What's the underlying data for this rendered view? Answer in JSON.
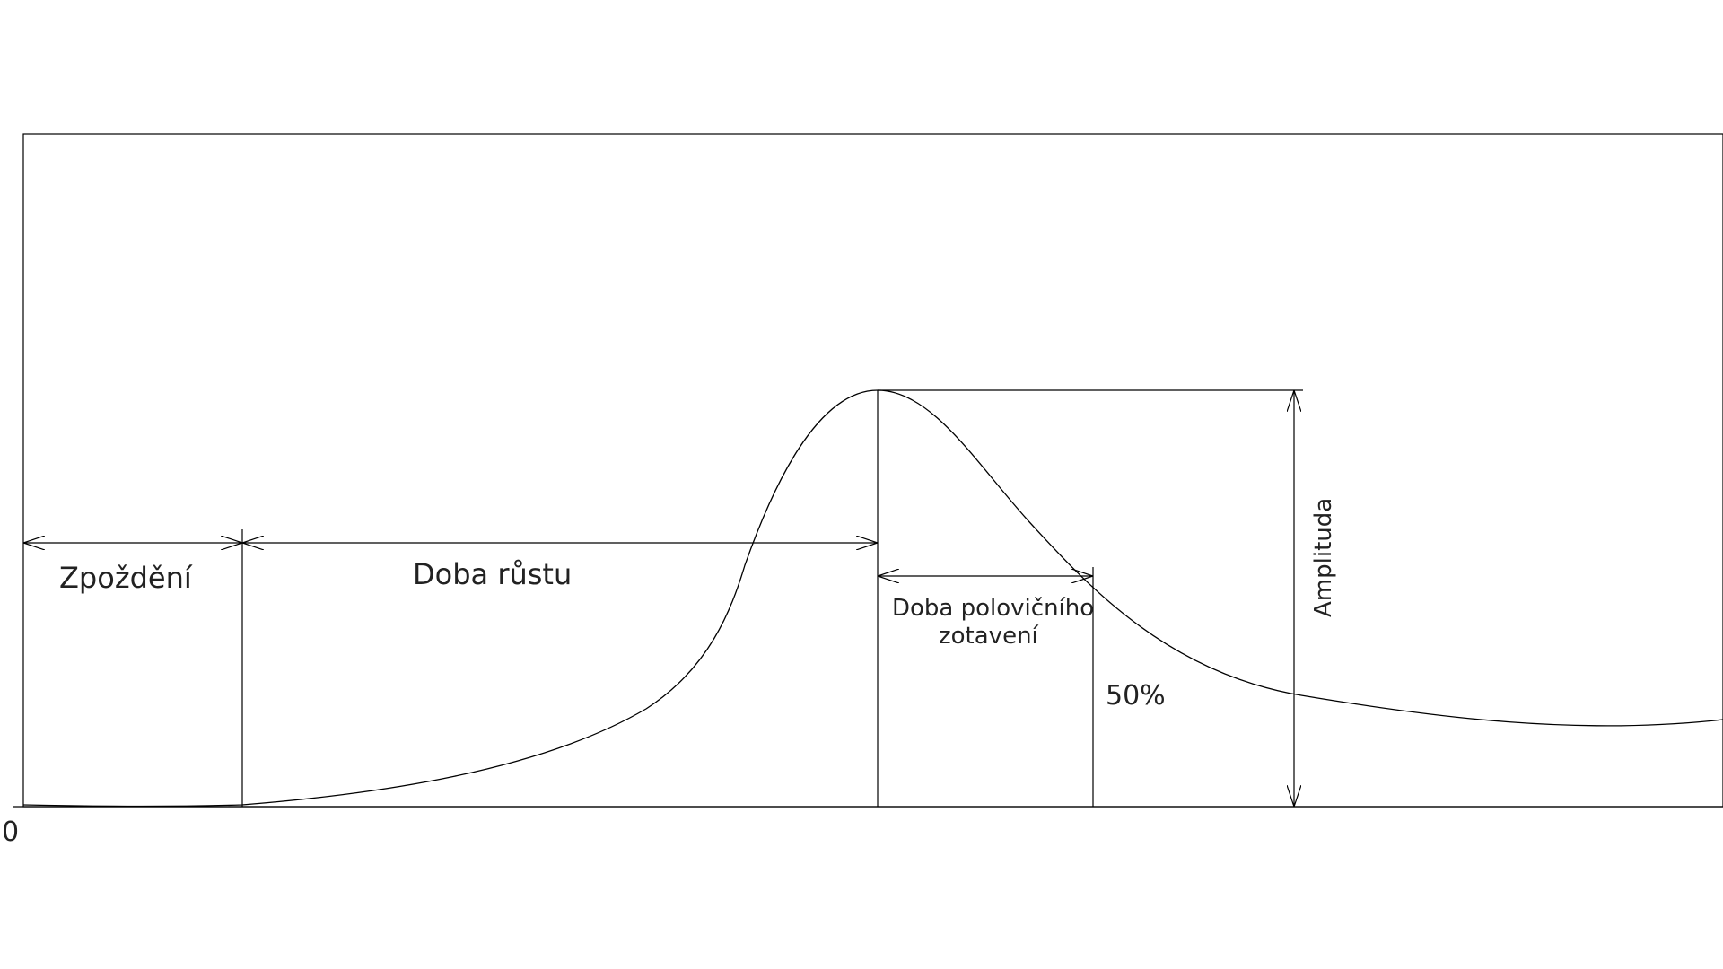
{
  "labels": {
    "origin": "0",
    "delay": "Zpoždění",
    "rise_time": "Doba růstu",
    "half_recovery_line1": "Doba polovičního",
    "half_recovery_line2": "zotavení",
    "fifty_percent": "50%",
    "amplitude": "Amplituda"
  },
  "colors": {
    "line": "#000000",
    "text": "#222222",
    "background": "#ffffff"
  }
}
